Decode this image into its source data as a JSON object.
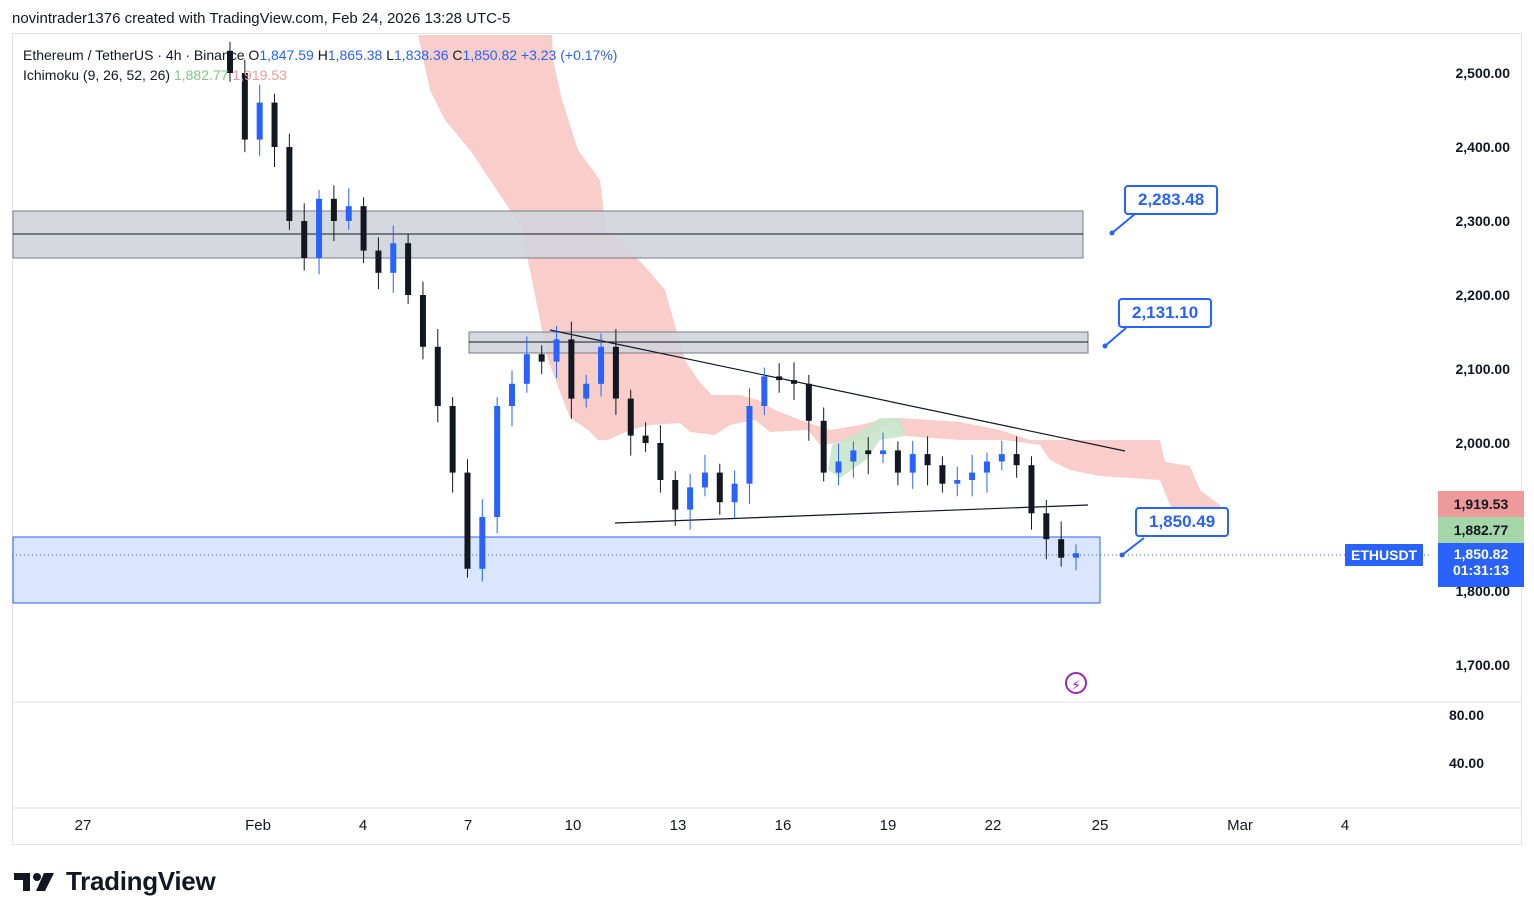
{
  "header": {
    "credit": "novintrader1376 created with TradingView.com, Feb 24, 2026 13:28 UTC-5"
  },
  "legend": {
    "symbol_line": "Ethereum / TetherUS · 4h · Binance",
    "o_label": "O",
    "o": "1,847.59",
    "h_label": "H",
    "h": "1,865.38",
    "l_label": "L",
    "l": "1,838.36",
    "c_label": "C",
    "c": "1,850.82",
    "change": "+3.23 (+0.17%)",
    "indicator": "Ichimoku (9, 26, 52, 26)",
    "ind_val1": "1,882.77",
    "ind_val2": "1,919.53"
  },
  "callouts": {
    "c1": "2,283.48",
    "c2": "2,131.10",
    "c3": "1,850.49"
  },
  "scale_badges": {
    "span_b": "1,919.53",
    "span_a": "1,882.77",
    "last_price": "1,850.82",
    "countdown": "01:31:13",
    "symbol": "ETHUSDT"
  },
  "colors": {
    "up": "#2962ff",
    "down": "#131722",
    "cloud_bear": "#f8c4c0",
    "cloud_bull": "#c8e6c9",
    "zone_grey": "#d1d4dc",
    "zone_blue": "#d6e2ff",
    "accent": "#2962ff"
  },
  "icons": {
    "logo": "tradingview-logo-icon",
    "alert": "lightning-bolt-icon"
  },
  "brand": "TradingView",
  "chart_data": {
    "type": "candlestick",
    "price_axis": {
      "ticks": [
        "2,500.00",
        "2,400.00",
        "2,300.00",
        "2,200.00",
        "2,100.00",
        "2,000.00",
        "1,900.00",
        "1,800.00",
        "1,700.00"
      ],
      "tick_values": [
        2500,
        2400,
        2300,
        2200,
        2100,
        2000,
        1900,
        1800,
        1700
      ]
    },
    "oscillator_axis": {
      "ticks": [
        "80.00",
        "40.00"
      ]
    },
    "time_axis": {
      "ticks": [
        "27",
        "Feb",
        "4",
        "7",
        "10",
        "13",
        "16",
        "19",
        "22",
        "25",
        "Mar",
        "4"
      ]
    },
    "candles_close_approx": [
      2500,
      2410,
      2460,
      2400,
      2300,
      2250,
      2330,
      2300,
      2320,
      2260,
      2230,
      2270,
      2200,
      2130,
      2050,
      1960,
      1830,
      1900,
      2050,
      2080,
      2120,
      2110,
      2140,
      2060,
      2080,
      2130,
      2060,
      2010,
      2000,
      1950,
      1910,
      1940,
      1960,
      1920,
      1945,
      2050,
      2090,
      2085,
      2080,
      2030,
      1960,
      1975,
      1990,
      1985,
      1990,
      1960,
      1985,
      1970,
      1945,
      1950,
      1960,
      1975,
      1985,
      1970,
      1905,
      1870,
      1845,
      1851
    ],
    "zones": [
      {
        "name": "resistance",
        "from": 2250,
        "to": 2310
      },
      {
        "name": "resistance",
        "from": 2120,
        "to": 2145
      },
      {
        "name": "support",
        "from": 1780,
        "to": 1870
      }
    ],
    "trendlines": [
      {
        "name": "descending",
        "from": 2150,
        "to": 1990
      },
      {
        "name": "ascending",
        "from": 1890,
        "to": 1915
      }
    ]
  }
}
